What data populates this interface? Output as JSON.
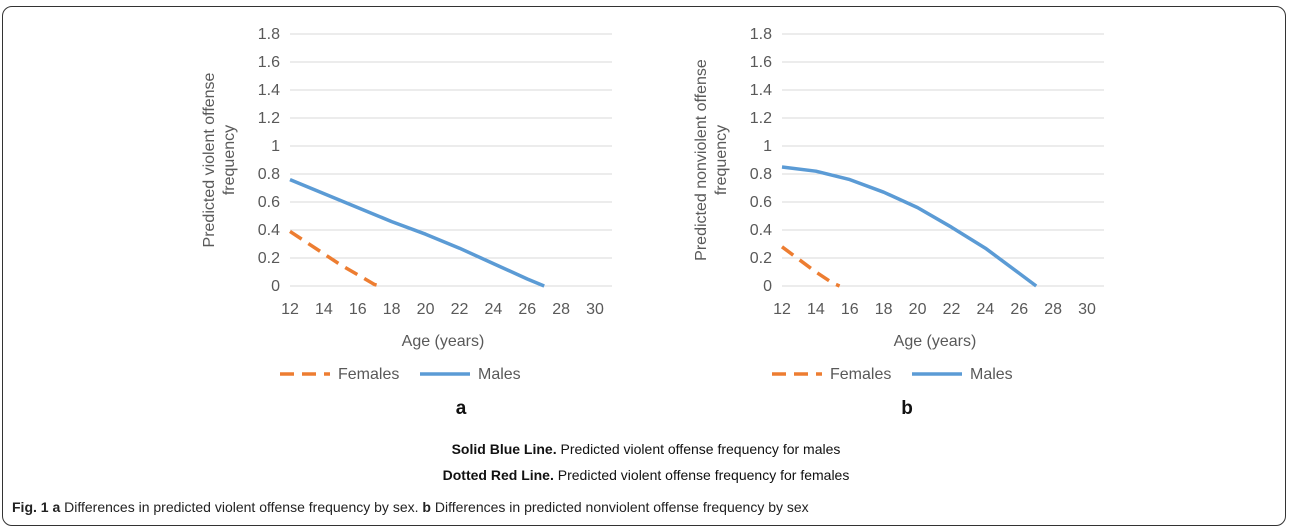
{
  "chart_data": [
    {
      "type": "line",
      "panel": "a",
      "xlabel": "Age (years)",
      "ylabel_lines": [
        "Predicted violent offense",
        "frequency"
      ],
      "x_ticks": [
        12,
        14,
        16,
        18,
        20,
        22,
        24,
        26,
        28,
        30
      ],
      "y_ticks": [
        "0",
        "0.2",
        "0.4",
        "0.6",
        "0.8",
        "1",
        "1.2",
        "1.4",
        "1.6",
        "1.8"
      ],
      "xlim": [
        12,
        31
      ],
      "ylim": [
        0,
        1.8
      ],
      "grid": true,
      "legend_position": "bottom",
      "series": [
        {
          "name": "Females",
          "style": "dashed",
          "color": "#ED7D31",
          "points": [
            [
              12,
              0.39
            ],
            [
              13,
              0.31
            ],
            [
              14,
              0.23
            ],
            [
              15,
              0.15
            ],
            [
              16,
              0.08
            ],
            [
              17,
              0.01
            ],
            [
              17.3,
              0.0
            ]
          ]
        },
        {
          "name": "Males",
          "style": "solid",
          "color": "#5B9BD5",
          "points": [
            [
              12,
              0.76
            ],
            [
              14,
              0.66
            ],
            [
              16,
              0.56
            ],
            [
              18,
              0.46
            ],
            [
              20,
              0.37
            ],
            [
              22,
              0.27
            ],
            [
              24,
              0.16
            ],
            [
              26,
              0.05
            ],
            [
              27,
              0.0
            ]
          ]
        }
      ]
    },
    {
      "type": "line",
      "panel": "b",
      "xlabel": "Age (years)",
      "ylabel_lines": [
        "Predicted nonviolent offense",
        "frequency"
      ],
      "x_ticks": [
        12,
        14,
        16,
        18,
        20,
        22,
        24,
        26,
        28,
        30
      ],
      "y_ticks": [
        "0",
        "0.2",
        "0.4",
        "0.6",
        "0.8",
        "1",
        "1.2",
        "1.4",
        "1.6",
        "1.8"
      ],
      "xlim": [
        12,
        31
      ],
      "ylim": [
        0,
        1.8
      ],
      "grid": true,
      "legend_position": "bottom",
      "series": [
        {
          "name": "Females",
          "style": "dashed",
          "color": "#ED7D31",
          "points": [
            [
              12,
              0.28
            ],
            [
              13,
              0.19
            ],
            [
              14,
              0.1
            ],
            [
              15,
              0.02
            ],
            [
              15.4,
              0.0
            ]
          ]
        },
        {
          "name": "Males",
          "style": "solid",
          "color": "#5B9BD5",
          "points": [
            [
              12,
              0.85
            ],
            [
              14,
              0.82
            ],
            [
              16,
              0.76
            ],
            [
              18,
              0.67
            ],
            [
              20,
              0.56
            ],
            [
              22,
              0.42
            ],
            [
              24,
              0.27
            ],
            [
              26,
              0.09
            ],
            [
              27,
              0.0
            ]
          ]
        }
      ]
    }
  ],
  "panel_letters": {
    "a": "a",
    "b": "b"
  },
  "notes": {
    "line1_bold": "Solid Blue Line.",
    "line1_text": " Predicted violent offense frequency for males",
    "line2_bold": "Dotted Red Line.",
    "line2_text": " Predicted violent offense frequency for females"
  },
  "caption": {
    "fig_label": "Fig. 1",
    "part_a_letter": "a",
    "part_a_text": " Differences in predicted violent offense frequency by sex. ",
    "part_b_letter": "b",
    "part_b_text": " Differences in predicted nonviolent offense frequency by sex"
  }
}
